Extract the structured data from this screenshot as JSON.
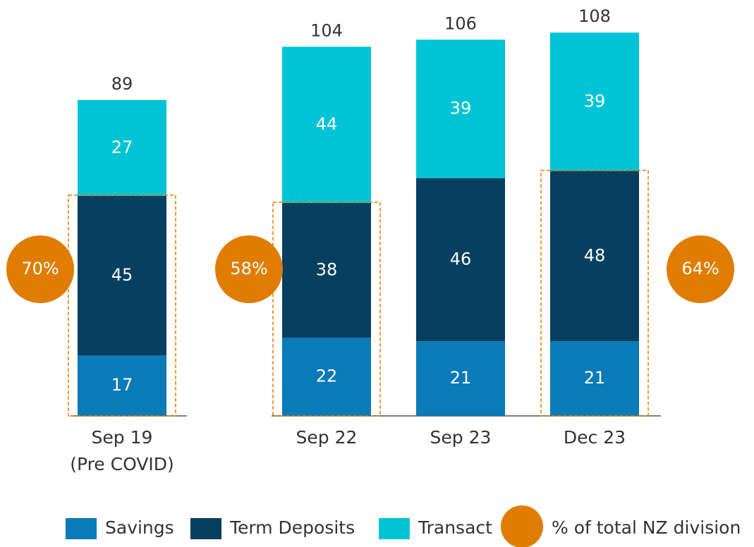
{
  "chart_data": {
    "type": "stacked_bar",
    "categories": [
      "Sep 19",
      "Sep 22",
      "Sep 23",
      "Dec 23"
    ],
    "subcategories": [
      "(Pre COVID)",
      null,
      null,
      null
    ],
    "series": [
      {
        "name": "Savings",
        "color": "#0a7ab8",
        "values": [
          17,
          22,
          21,
          21
        ]
      },
      {
        "name": "Term Deposits",
        "color": "#063f5f",
        "values": [
          45,
          38,
          46,
          48
        ]
      },
      {
        "name": "Transact",
        "color": "#00c4d6",
        "values": [
          27,
          44,
          39,
          39
        ]
      }
    ],
    "totals": [
      89,
      104,
      106,
      108
    ],
    "share": {
      "name": "% of total NZ division",
      "color": "#e07c00",
      "values": [
        70,
        58,
        null,
        64
      ],
      "value_labels": [
        "70%",
        "58%",
        null,
        "64%"
      ]
    }
  }
}
